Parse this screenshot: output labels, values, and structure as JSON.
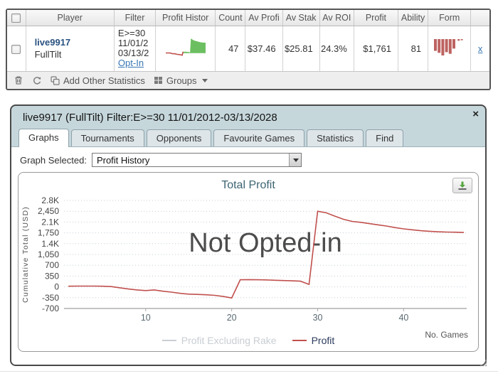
{
  "results_table": {
    "headers": [
      "Player",
      "Filter",
      "Profit Histor",
      "Count",
      "Av Profi",
      "Av Stak",
      "Av ROI",
      "Profit",
      "Ability",
      "Form"
    ],
    "row": {
      "player_name": "live9917",
      "player_site": "FullTilt",
      "filter_lines": [
        "E>=30",
        "11/01/2",
        "03/13/2"
      ],
      "opt_in_label": "Opt-In",
      "count": "47",
      "av_profit": "$37.46",
      "av_stake": "$25.81",
      "av_roi": "24.3%",
      "profit": "$1,761",
      "ability": "81",
      "remove_label": "x"
    },
    "form_spark": {
      "color": "#bd6361",
      "heights": [
        0.72,
        0.84,
        1,
        0.8,
        0.9,
        0.58,
        0.1,
        0.07
      ]
    },
    "spark_colors": {
      "positive_fill": "#6cbf60",
      "negative_line": "#c0504d"
    }
  },
  "toolbar": {
    "add_other_statistics_label": "Add Other Statistics",
    "groups_label": "Groups"
  },
  "panel": {
    "title": "live9917 (FullTilt) Filter:E>=30 11/01/2012-03/13/2028",
    "close_glyph": "×",
    "tabs": [
      {
        "label": "Graphs",
        "active": true
      },
      {
        "label": "Tournaments",
        "active": false
      },
      {
        "label": "Opponents",
        "active": false
      },
      {
        "label": "Favourite Games",
        "active": false
      },
      {
        "label": "Statistics",
        "active": false
      },
      {
        "label": "Find",
        "active": false
      }
    ],
    "graph_selected_label": "Graph Selected:",
    "graph_selected_value": "Profit History"
  },
  "chart_data": {
    "type": "line",
    "title": "Total Profit",
    "watermark": "Not Opted-in",
    "ylabel": "Cumulative Total (USD)",
    "xlabel": "No. Games",
    "ylim": [
      -700,
      2800
    ],
    "ytick_step": 350,
    "ytick_labels": [
      "2.8K",
      "2,450",
      "2.1K",
      "1,750",
      "1.4K",
      "1,050",
      "700",
      "350",
      "0",
      "-350",
      "-700"
    ],
    "xlim": [
      1,
      47
    ],
    "xticks": [
      10,
      20,
      30,
      40
    ],
    "grid": "dotted",
    "legend_position": "bottom-center",
    "legend": [
      {
        "name": "Profit Excluding Rake",
        "swatch_color": "#c9ced3",
        "text_color": "#c9ced3"
      },
      {
        "name": "Profit",
        "swatch_color": "#c0504d",
        "text_color": "#2b3b5c"
      }
    ],
    "series": [
      {
        "name": "Profit",
        "color": "#c0504d",
        "values": [
          20,
          25,
          25,
          25,
          20,
          10,
          -30,
          -70,
          -100,
          -120,
          -100,
          -140,
          -170,
          -210,
          -235,
          -245,
          -255,
          -275,
          -310,
          -360,
          230,
          235,
          230,
          225,
          215,
          205,
          195,
          185,
          80,
          2450,
          2400,
          2290,
          2190,
          2120,
          2090,
          2050,
          2010,
          1970,
          1920,
          1880,
          1850,
          1820,
          1800,
          1785,
          1775,
          1770,
          1761
        ]
      }
    ],
    "colors": {
      "watermark": "#4c4c4c",
      "grid": "#c6cdd6",
      "axis": "#c3c3c3",
      "ytick_text": "#444444",
      "xtick_text": "#5a6a72",
      "title": "#3c6472"
    }
  }
}
